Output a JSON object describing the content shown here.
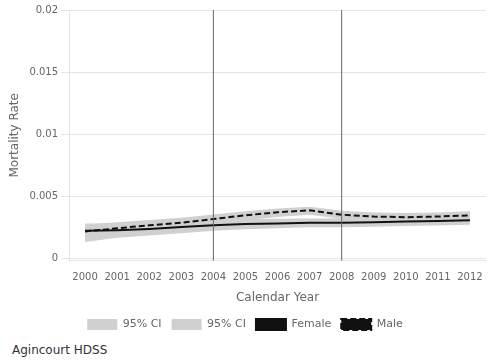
{
  "chart_data": {
    "type": "line",
    "xlabel": "Calendar Year",
    "ylabel": "Mortality Rate",
    "annotation": "Agincourt HDSS",
    "x": [
      2000,
      2001,
      2002,
      2003,
      2004,
      2005,
      2006,
      2007,
      2008,
      2009,
      2010,
      2011,
      2012
    ],
    "series": [
      {
        "name": "95% CI",
        "type": "area",
        "color": "#d0d0d0",
        "lower": [
          0.0013,
          0.00165,
          0.00182,
          0.002,
          0.0022,
          0.00233,
          0.0024,
          0.00248,
          0.00248,
          0.00252,
          0.00258,
          0.00263,
          0.00268
        ],
        "upper": [
          0.0028,
          0.0028,
          0.00285,
          0.00295,
          0.00305,
          0.00315,
          0.00318,
          0.0032,
          0.00322,
          0.00325,
          0.0033,
          0.00335,
          0.0034
        ]
      },
      {
        "name": "95% CI",
        "type": "area",
        "color": "#d0d0d0",
        "lower": [
          0.00165,
          0.00192,
          0.00215,
          0.0024,
          0.00272,
          0.00305,
          0.00332,
          0.0035,
          0.00318,
          0.00302,
          0.00298,
          0.00302,
          0.00312
        ],
        "upper": [
          0.0027,
          0.0029,
          0.00308,
          0.00325,
          0.00352,
          0.00378,
          0.004,
          0.00415,
          0.00382,
          0.00368,
          0.00363,
          0.00368,
          0.00378
        ]
      },
      {
        "name": "Female",
        "type": "line",
        "color": "#111111",
        "line_style": "solid",
        "values": [
          0.0022,
          0.00225,
          0.00235,
          0.0025,
          0.00265,
          0.00275,
          0.0028,
          0.00285,
          0.00285,
          0.0029,
          0.00295,
          0.003,
          0.00305
        ]
      },
      {
        "name": "Male",
        "type": "line",
        "color": "#111111",
        "line_style": "dashed",
        "values": [
          0.00215,
          0.0024,
          0.00265,
          0.00285,
          0.00315,
          0.00345,
          0.0037,
          0.00385,
          0.0035,
          0.00335,
          0.0033,
          0.00335,
          0.00345
        ]
      }
    ],
    "vlines": {
      "values": [
        2004,
        2008
      ],
      "color": "#666666"
    },
    "xlim": [
      1999.5,
      2012.5
    ],
    "xticks": [
      2000,
      2001,
      2002,
      2003,
      2004,
      2005,
      2006,
      2007,
      2008,
      2009,
      2010,
      2011,
      2012
    ],
    "ylim": [
      -0.0002,
      0.02
    ],
    "yticks": [
      0,
      0.005,
      0.01,
      0.015,
      0.02
    ],
    "grid": "y",
    "legend": "bottom"
  }
}
